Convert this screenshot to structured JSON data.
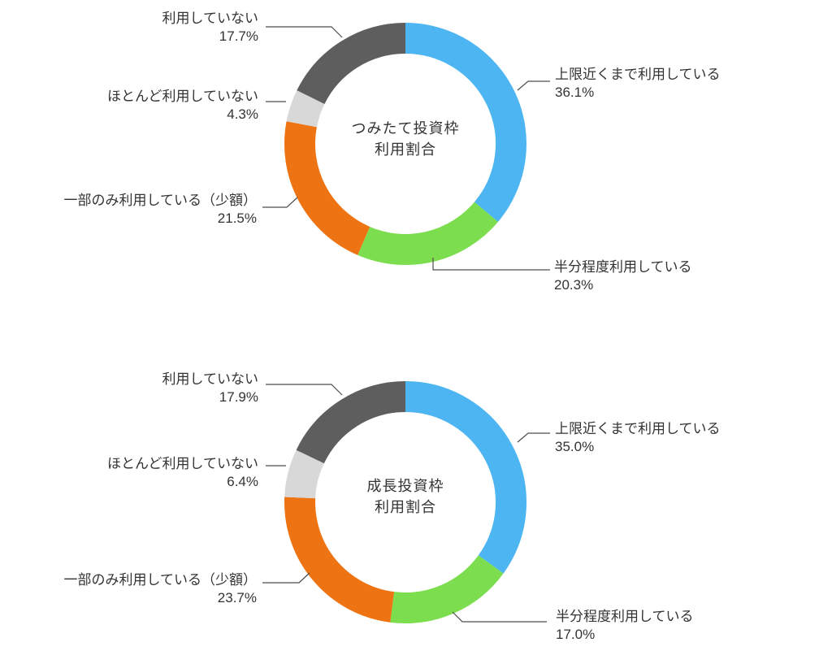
{
  "page": {
    "background": "#ffffff",
    "description": "Two donut charts showing NISA investment quota usage ratios"
  },
  "colors": {
    "text": "#333333",
    "leader_line": "#4d4d4d",
    "blue": "#4db5f1",
    "green": "#7cde4f",
    "orange": "#ee7312",
    "light_gray": "#d8d8d8",
    "dark_gray": "#5e5e5e"
  },
  "chart_data": [
    {
      "type": "pie",
      "subtype": "donut",
      "title": "つみたて投資枠 利用割合",
      "title_lines": [
        "つみたて投資枠",
        "利用割合"
      ],
      "start_angle_deg": 0,
      "direction": "clockwise",
      "legend": "none",
      "labels_position": "outside-with-leader-lines",
      "categories": [
        "上限近くまで利用している",
        "半分程度利用している",
        "一部のみ利用している（少額）",
        "ほとんど利用していない",
        "利用していない"
      ],
      "values": [
        36.1,
        20.3,
        21.5,
        4.3,
        17.7
      ],
      "labels": [
        "36.1%",
        "20.3%",
        "21.5%",
        "4.3%",
        "17.7%"
      ],
      "colors": [
        "#4db5f1",
        "#7cde4f",
        "#ee7312",
        "#d8d8d8",
        "#5e5e5e"
      ]
    },
    {
      "type": "pie",
      "subtype": "donut",
      "title": "成長投資枠 利用割合",
      "title_lines": [
        "成長投資枠",
        "利用割合"
      ],
      "start_angle_deg": 0,
      "direction": "clockwise",
      "legend": "none",
      "labels_position": "outside-with-leader-lines",
      "categories": [
        "上限近くまで利用している",
        "半分程度利用している",
        "一部のみ利用している（少額）",
        "ほとんど利用していない",
        "利用していない"
      ],
      "values": [
        35.0,
        17.0,
        23.7,
        6.4,
        17.9
      ],
      "labels": [
        "35.0%",
        "17.0%",
        "23.7%",
        "6.4%",
        "17.9%"
      ],
      "colors": [
        "#4db5f1",
        "#7cde4f",
        "#ee7312",
        "#d8d8d8",
        "#5e5e5e"
      ]
    }
  ]
}
